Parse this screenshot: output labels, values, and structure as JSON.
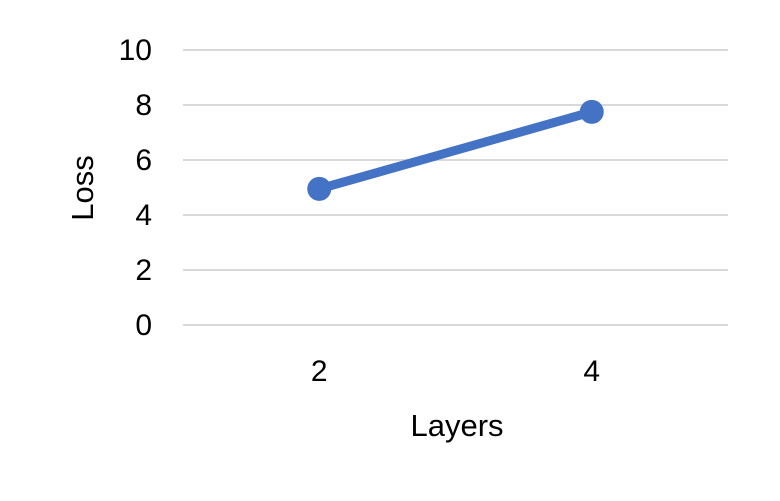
{
  "chart_data": {
    "type": "line",
    "title": "",
    "xlabel": "Layers",
    "ylabel": "Loss",
    "categories": [
      "2",
      "4"
    ],
    "x_domain": [
      1,
      5
    ],
    "series": [
      {
        "values": [
          4.95,
          7.75
        ],
        "color": "#4472C4"
      }
    ],
    "ylim": [
      0,
      10
    ],
    "yticks": [
      "0",
      "2",
      "4",
      "6",
      "8",
      "10"
    ],
    "grid": true,
    "grid_color": "#D9D9D9",
    "legend": "none"
  }
}
